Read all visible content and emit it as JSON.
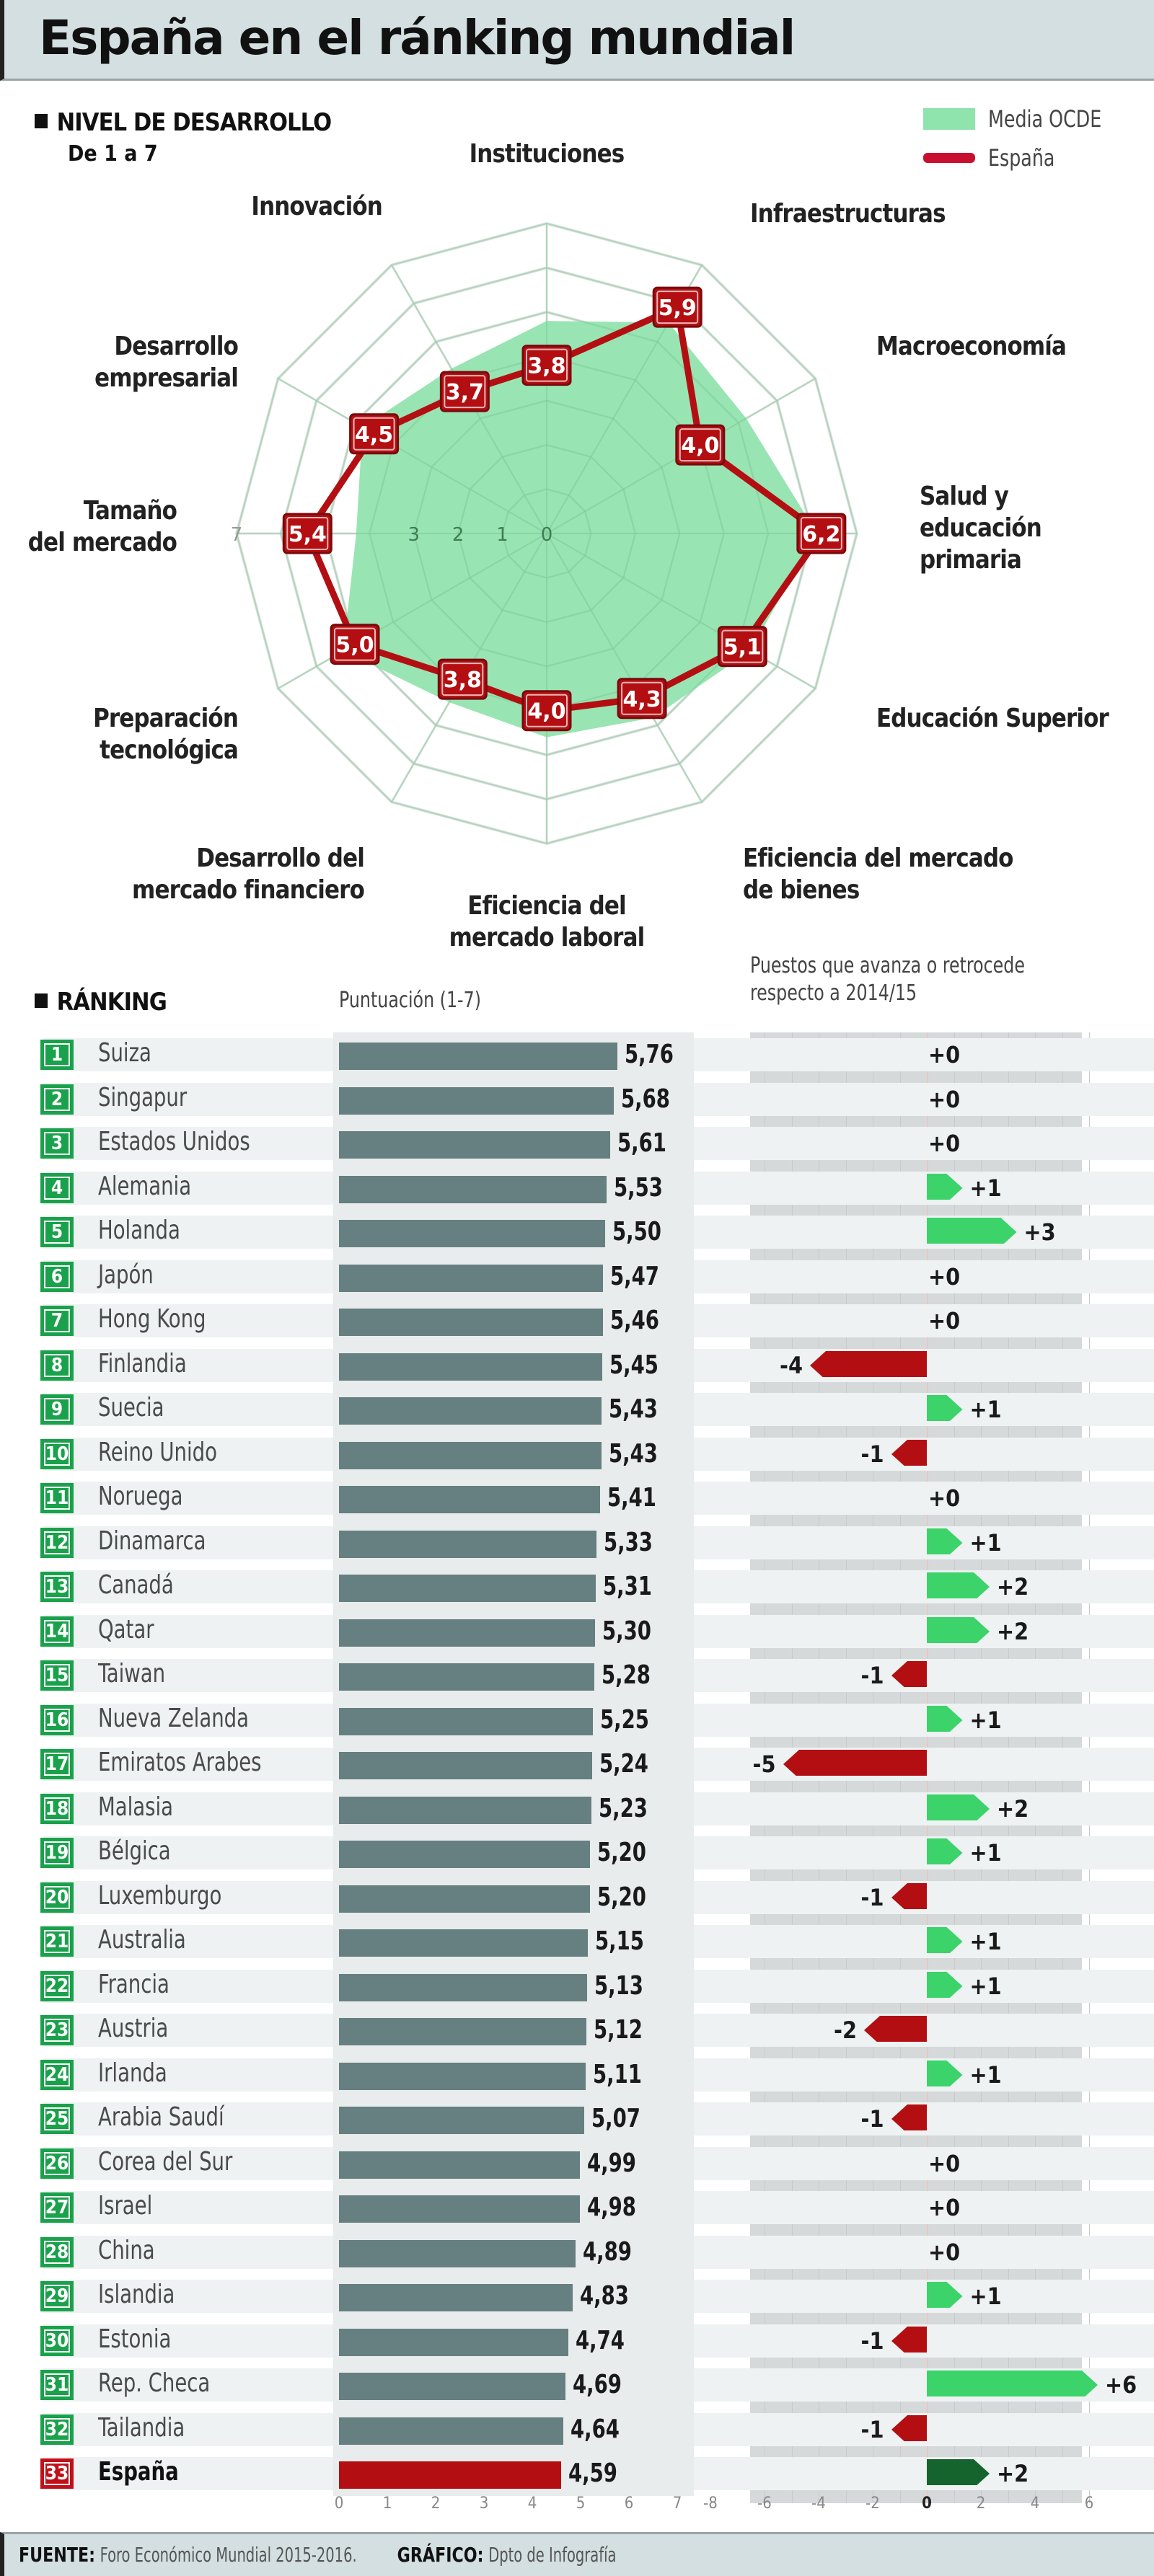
{
  "title": "España en el ránking mundial",
  "radar_section": {
    "label": "NIVEL DE DESARROLLO",
    "sublabel": "De 1 a 7",
    "legend": [
      {
        "label": "Media OCDE",
        "color": "#8fe3ad"
      },
      {
        "label": "España",
        "color": "#c8102e"
      }
    ]
  },
  "ranking_section": {
    "label": "RÁNKING",
    "score_header": "Puntuación (1-7)",
    "change_header_line1": "Puestos que avanza o retrocede",
    "change_header_line2": "respecto a 2014/15"
  },
  "footer": {
    "source_label": "FUENTE:",
    "source_text": "Foro Económico Mundial 2015-2016.",
    "graphic_label": "GRÁFICO:",
    "graphic_text": "Dpto de Infografía"
  },
  "colors": {
    "oecd_fill": "#8fe3ad",
    "spain_line": "#b30f12",
    "bar_default": "#667f80",
    "bar_spain": "#b30f12",
    "arrow_up": "#3bd36a",
    "arrow_up_spain": "#15642d",
    "arrow_down": "#b30f12",
    "badge_green": "#1aa14b",
    "badge_red": "#c0101a"
  },
  "chart_data": [
    {
      "type": "radar",
      "title": "NIVEL DE DESARROLLO",
      "subtitle": "De 1 a 7",
      "range": [
        0,
        7
      ],
      "radial_ticks": [
        0,
        1,
        2,
        3,
        5,
        7
      ],
      "axes": [
        {
          "label": "Instituciones",
          "lines": [
            "Instituciones"
          ]
        },
        {
          "label": "Infraestructuras",
          "lines": [
            "Infraestructuras"
          ]
        },
        {
          "label": "Macroeconomía",
          "lines": [
            "Macroeconomía"
          ]
        },
        {
          "label": "Salud y educación primaria",
          "lines": [
            "Salud y",
            "educación",
            "primaria"
          ]
        },
        {
          "label": "Educación Superior",
          "lines": [
            "Educación Superior"
          ]
        },
        {
          "label": "Eficiencia del mercado de bienes",
          "lines": [
            "Eficiencia del mercado",
            "de bienes"
          ]
        },
        {
          "label": "Eficiencia del mercado laboral",
          "lines": [
            "Eficiencia del",
            "mercado laboral"
          ]
        },
        {
          "label": "Desarrollo del mercado financiero",
          "lines": [
            "Desarrollo del",
            "mercado financiero"
          ]
        },
        {
          "label": "Preparación tecnológica",
          "lines": [
            "Preparación",
            "tecnológica"
          ]
        },
        {
          "label": "Tamaño del mercado",
          "lines": [
            "Tamaño",
            "del mercado"
          ]
        },
        {
          "label": "Desarrollo empresarial",
          "lines": [
            "Desarrollo",
            "empresarial"
          ]
        },
        {
          "label": "Innovación",
          "lines": [
            "Innovación"
          ]
        }
      ],
      "series": [
        {
          "name": "Media OCDE",
          "values": [
            4.8,
            5.5,
            5.2,
            6.1,
            5.3,
            4.8,
            4.6,
            4.4,
            5.3,
            4.3,
            4.8,
            4.3
          ],
          "style": "area"
        },
        {
          "name": "España",
          "values": [
            3.8,
            5.9,
            4.0,
            6.2,
            5.1,
            4.3,
            4.0,
            3.8,
            5.0,
            5.4,
            4.5,
            3.7
          ],
          "labels": [
            "3,8",
            "5,9",
            "4,0",
            "6,2",
            "5,1",
            "4,3",
            "4,0",
            "3,8",
            "5,0",
            "5,4",
            "4,5",
            "3,7"
          ],
          "style": "line"
        }
      ],
      "legend": [
        "Media OCDE",
        "España"
      ],
      "legend_position": "top-right"
    },
    {
      "type": "bar",
      "title": "RÁNKING",
      "orientation": "horizontal",
      "xlabel": "Puntuación (1-7)",
      "xlim": [
        0,
        7
      ],
      "x_ticks": [
        0,
        1,
        2,
        3,
        4,
        5,
        6,
        7
      ],
      "categories": [
        "Suiza",
        "Singapur",
        "Estados Unidos",
        "Alemania",
        "Holanda",
        "Japón",
        "Hong Kong",
        "Finlandia",
        "Suecia",
        "Reino Unido",
        "Noruega",
        "Dinamarca",
        "Canadá",
        "Qatar",
        "Taiwan",
        "Nueva Zelanda",
        "Emiratos Arabes",
        "Malasia",
        "Bélgica",
        "Luxemburgo",
        "Australia",
        "Francia",
        "Austria",
        "Irlanda",
        "Arabia Saudí",
        "Corea del Sur",
        "Israel",
        "China",
        "Islandia",
        "Estonia",
        "Rep. Checa",
        "Tailandia",
        "España"
      ],
      "ranks": [
        1,
        2,
        3,
        4,
        5,
        6,
        7,
        8,
        9,
        10,
        11,
        12,
        13,
        14,
        15,
        16,
        17,
        18,
        19,
        20,
        21,
        22,
        23,
        24,
        25,
        26,
        27,
        28,
        29,
        30,
        31,
        32,
        33
      ],
      "values": [
        5.76,
        5.68,
        5.61,
        5.53,
        5.5,
        5.47,
        5.46,
        5.45,
        5.43,
        5.43,
        5.41,
        5.33,
        5.31,
        5.3,
        5.28,
        5.25,
        5.24,
        5.23,
        5.2,
        5.2,
        5.15,
        5.13,
        5.12,
        5.11,
        5.07,
        4.99,
        4.98,
        4.89,
        4.83,
        4.74,
        4.69,
        4.64,
        4.59
      ],
      "value_labels": [
        "5,76",
        "5,68",
        "5,61",
        "5,53",
        "5,50",
        "5,47",
        "5,46",
        "5,45",
        "5,43",
        "5,43",
        "5,41",
        "5,33",
        "5,31",
        "5,30",
        "5,28",
        "5,25",
        "5,24",
        "5,23",
        "5,20",
        "5,20",
        "5,15",
        "5,13",
        "5,12",
        "5,11",
        "5,07",
        "4,99",
        "4,98",
        "4,89",
        "4,83",
        "4,74",
        "4,69",
        "4,64",
        "4,59"
      ],
      "highlight": "España"
    },
    {
      "type": "bar",
      "title": "Puestos que avanza o retrocede respecto a 2014/15",
      "orientation": "horizontal",
      "xlim": [
        -8,
        6
      ],
      "x_ticks": [
        -8,
        -6,
        -4,
        -2,
        0,
        2,
        4,
        6
      ],
      "categories": [
        "Suiza",
        "Singapur",
        "Estados Unidos",
        "Alemania",
        "Holanda",
        "Japón",
        "Hong Kong",
        "Finlandia",
        "Suecia",
        "Reino Unido",
        "Noruega",
        "Dinamarca",
        "Canadá",
        "Qatar",
        "Taiwan",
        "Nueva Zelanda",
        "Emiratos Arabes",
        "Malasia",
        "Bélgica",
        "Luxemburgo",
        "Australia",
        "Francia",
        "Austria",
        "Irlanda",
        "Arabia Saudí",
        "Corea del Sur",
        "Israel",
        "China",
        "Islandia",
        "Estonia",
        "Rep. Checa",
        "Tailandia",
        "España"
      ],
      "values": [
        0,
        0,
        0,
        1,
        3,
        0,
        0,
        -4,
        1,
        -1,
        0,
        1,
        2,
        2,
        -1,
        1,
        -5,
        2,
        1,
        -1,
        1,
        1,
        -2,
        1,
        -1,
        0,
        0,
        0,
        1,
        -1,
        6,
        -1,
        2
      ],
      "value_labels": [
        "+0",
        "+0",
        "+0",
        "+1",
        "+3",
        "+0",
        "+0",
        "-4",
        "+1",
        "-1",
        "+0",
        "+1",
        "+2",
        "+2",
        "-1",
        "+1",
        "-5",
        "+2",
        "+1",
        "-1",
        "+1",
        "+1",
        "-2",
        "+1",
        "-1",
        "+0",
        "+0",
        "+0",
        "+1",
        "-1",
        "+6",
        "-1",
        "+2"
      ],
      "highlight": "España"
    }
  ]
}
